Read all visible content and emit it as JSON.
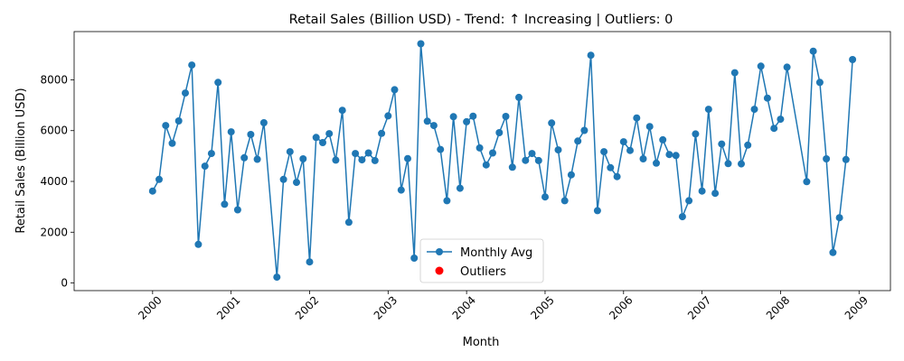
{
  "chart_data": {
    "type": "line",
    "title": "Retail Sales (Billion USD) - Trend: ↑ Increasing | Outliers: 0",
    "xlabel": "Month",
    "ylabel": "Retail Sales (Billion USD)",
    "xlim": [
      1999.0,
      2009.4
    ],
    "ylim": [
      -300,
      9900
    ],
    "x_ticks": [
      2000,
      2001,
      2002,
      2003,
      2004,
      2005,
      2006,
      2007,
      2008,
      2009
    ],
    "x_tick_labels": [
      "2000",
      "2001",
      "2002",
      "2003",
      "2004",
      "2005",
      "2006",
      "2007",
      "2008",
      "2009"
    ],
    "y_ticks": [
      0,
      2000,
      4000,
      6000,
      8000
    ],
    "y_tick_labels": [
      "0",
      "2000",
      "4000",
      "6000",
      "8000"
    ],
    "grid": false,
    "legend": {
      "placement": "lower-center",
      "entries": [
        {
          "label": "Monthly Avg",
          "kind": "line-marker",
          "color": "#1f77b4"
        },
        {
          "label": "Outliers",
          "kind": "marker",
          "color": "#ff0000"
        }
      ]
    },
    "series": [
      {
        "name": "Monthly Avg",
        "color": "#1f77b4",
        "x": [
          2000.0,
          2000.083,
          2000.167,
          2000.25,
          2000.333,
          2000.417,
          2000.5,
          2000.583,
          2000.667,
          2000.75,
          2000.833,
          2000.917,
          2001.0,
          2001.083,
          2001.167,
          2001.25,
          2001.333,
          2001.417,
          2001.583,
          2001.667,
          2001.75,
          2001.833,
          2001.917,
          2002.0,
          2002.083,
          2002.167,
          2002.25,
          2002.333,
          2002.417,
          2002.5,
          2002.583,
          2002.667,
          2002.75,
          2002.833,
          2002.917,
          2003.0,
          2003.083,
          2003.167,
          2003.25,
          2003.333,
          2003.417,
          2003.5,
          2003.583,
          2003.667,
          2003.75,
          2003.833,
          2003.917,
          2004.0,
          2004.083,
          2004.167,
          2004.25,
          2004.333,
          2004.417,
          2004.5,
          2004.583,
          2004.667,
          2004.75,
          2004.833,
          2004.917,
          2005.0,
          2005.083,
          2005.167,
          2005.25,
          2005.333,
          2005.417,
          2005.5,
          2005.583,
          2005.667,
          2005.75,
          2005.833,
          2005.917,
          2006.0,
          2006.083,
          2006.167,
          2006.25,
          2006.333,
          2006.417,
          2006.5,
          2006.583,
          2006.667,
          2006.75,
          2006.833,
          2006.917,
          2007.0,
          2007.083,
          2007.167,
          2007.25,
          2007.333,
          2007.417,
          2007.5,
          2007.583,
          2007.667,
          2007.75,
          2007.833,
          2007.917,
          2008.0,
          2008.083,
          2008.333,
          2008.417,
          2008.5,
          2008.583,
          2008.667,
          2008.75,
          2008.833,
          2008.917
        ],
        "y": [
          3620,
          4080,
          6200,
          5500,
          6380,
          7480,
          8580,
          1520,
          4600,
          5100,
          7900,
          3100,
          5950,
          2880,
          4930,
          5850,
          4870,
          6310,
          230,
          4080,
          5170,
          3960,
          4890,
          830,
          5730,
          5530,
          5880,
          4840,
          6800,
          2390,
          5100,
          4850,
          5120,
          4820,
          5890,
          6580,
          7610,
          3660,
          4900,
          980,
          9420,
          6370,
          6200,
          5260,
          3240,
          6550,
          3730,
          6350,
          6570,
          5320,
          4650,
          5120,
          5920,
          6560,
          4560,
          7310,
          4830,
          5100,
          4820,
          3390,
          6300,
          5240,
          3240,
          4260,
          5590,
          6010,
          8970,
          2850,
          5170,
          4540,
          4190,
          5560,
          5220,
          6500,
          4890,
          6160,
          4720,
          5640,
          5060,
          5020,
          2610,
          3240,
          5870,
          3620,
          6840,
          3530,
          5470,
          4700,
          8280,
          4690,
          5430,
          6840,
          8540,
          7280,
          6090,
          6450,
          8500,
          3990,
          9130,
          7900,
          4890,
          1200,
          2570,
          4860,
          8800
        ]
      },
      {
        "name": "Outliers",
        "color": "#ff0000",
        "x": [],
        "y": []
      }
    ]
  }
}
